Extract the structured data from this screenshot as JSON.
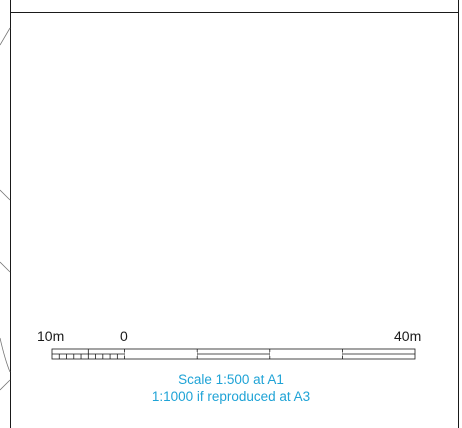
{
  "drawing": {
    "line_color": "#1a1a1a",
    "note_color": "#1fa3d6"
  },
  "scale_bar": {
    "label_left": "10m",
    "label_zero": "0",
    "label_right": "40m"
  },
  "scale_note": {
    "line1": "Scale 1:500 at A1",
    "line2": "1:1000 if reproduced at A3"
  }
}
